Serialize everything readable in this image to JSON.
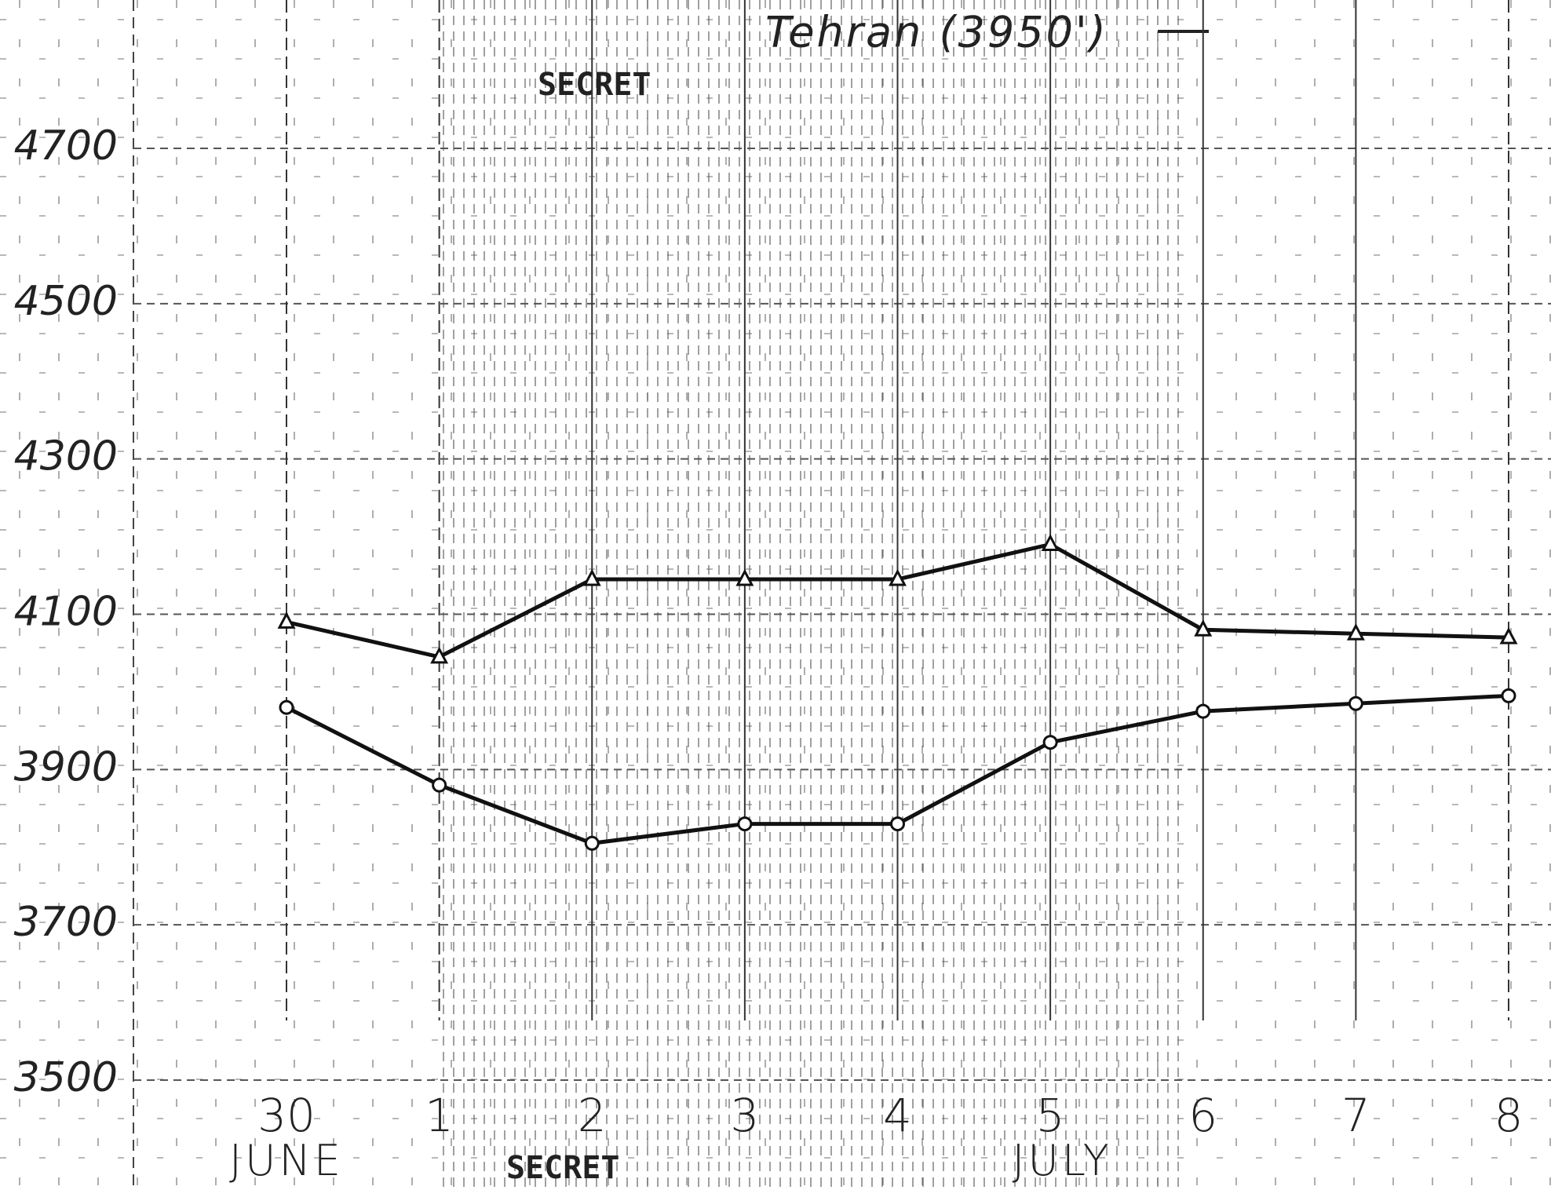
{
  "chart_data": {
    "type": "line",
    "title": "Tehran (3950')",
    "stamps": [
      "SECRET",
      "SECRET"
    ],
    "categories": [
      "30",
      "1",
      "2",
      "3",
      "4",
      "5",
      "6",
      "7",
      "8"
    ],
    "month_labels": [
      "JUNE",
      null,
      null,
      null,
      null,
      "JULY",
      null,
      null,
      null
    ],
    "series": [
      {
        "color": "#111111",
        "marker": "triangle",
        "values": [
          4090,
          4045,
          4145,
          4145,
          4145,
          4190,
          4080,
          4075,
          4070
        ]
      },
      {
        "color": "#111111",
        "marker": "circle",
        "values": [
          3980,
          3880,
          3805,
          3830,
          3830,
          3935,
          3975,
          3985,
          3995
        ]
      }
    ],
    "ylim": [
      3500,
      4700
    ],
    "yticks": [
      3500,
      3700,
      3900,
      4100,
      4300,
      4500,
      4700
    ],
    "grid": true
  }
}
